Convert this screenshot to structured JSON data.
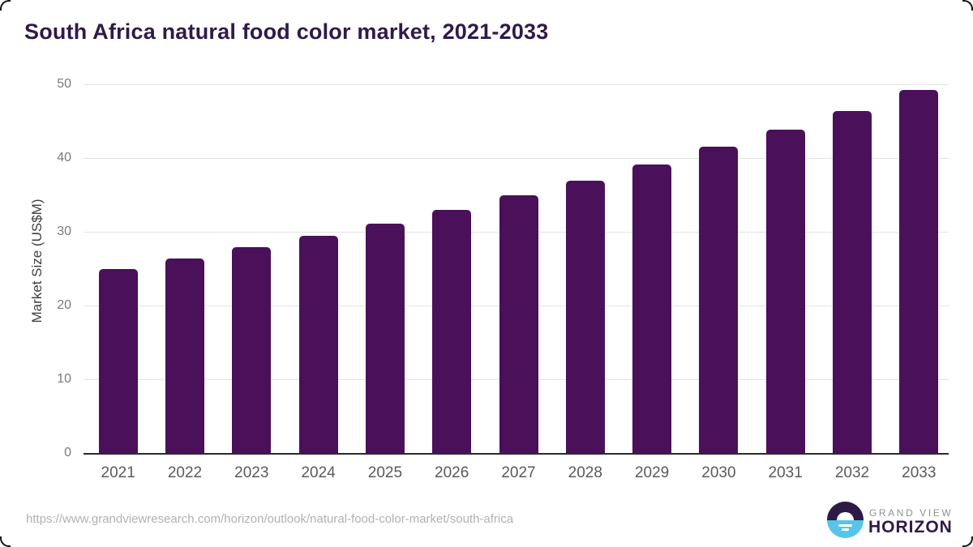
{
  "title": "South Africa natural food color market, 2021-2033",
  "chart_data": {
    "type": "bar",
    "title": "South Africa natural food color market, 2021-2033",
    "categories": [
      "2021",
      "2022",
      "2023",
      "2024",
      "2025",
      "2026",
      "2027",
      "2028",
      "2029",
      "2030",
      "2031",
      "2032",
      "2033"
    ],
    "values": [
      25.0,
      26.4,
      27.9,
      29.5,
      31.1,
      33.0,
      34.9,
      36.9,
      39.1,
      41.5,
      43.9,
      46.4,
      49.2
    ],
    "xlabel": "",
    "ylabel": "Market Size (US$M)",
    "ylim": [
      0,
      50
    ],
    "yticks": [
      0,
      10,
      20,
      30,
      40,
      50
    ],
    "grid": "horizontal",
    "legend": "none",
    "bar_color": "#4a1059"
  },
  "footer": {
    "url": "https://www.grandviewresearch.com/horizon/outlook/natural-food-color-market/south-africa",
    "logo": {
      "line1": "GRAND VIEW",
      "line2": "HORIZON"
    }
  },
  "colors": {
    "bar": "#4a1059",
    "title_text": "#2f1a4a",
    "logo_dark": "#2d1b45",
    "logo_blue": "#58c4e9",
    "gridline": "#e3e3e3",
    "axis_line": "#2b2b2b",
    "tick_text": "#7a7a7a",
    "url_text": "#b1b1b1"
  }
}
